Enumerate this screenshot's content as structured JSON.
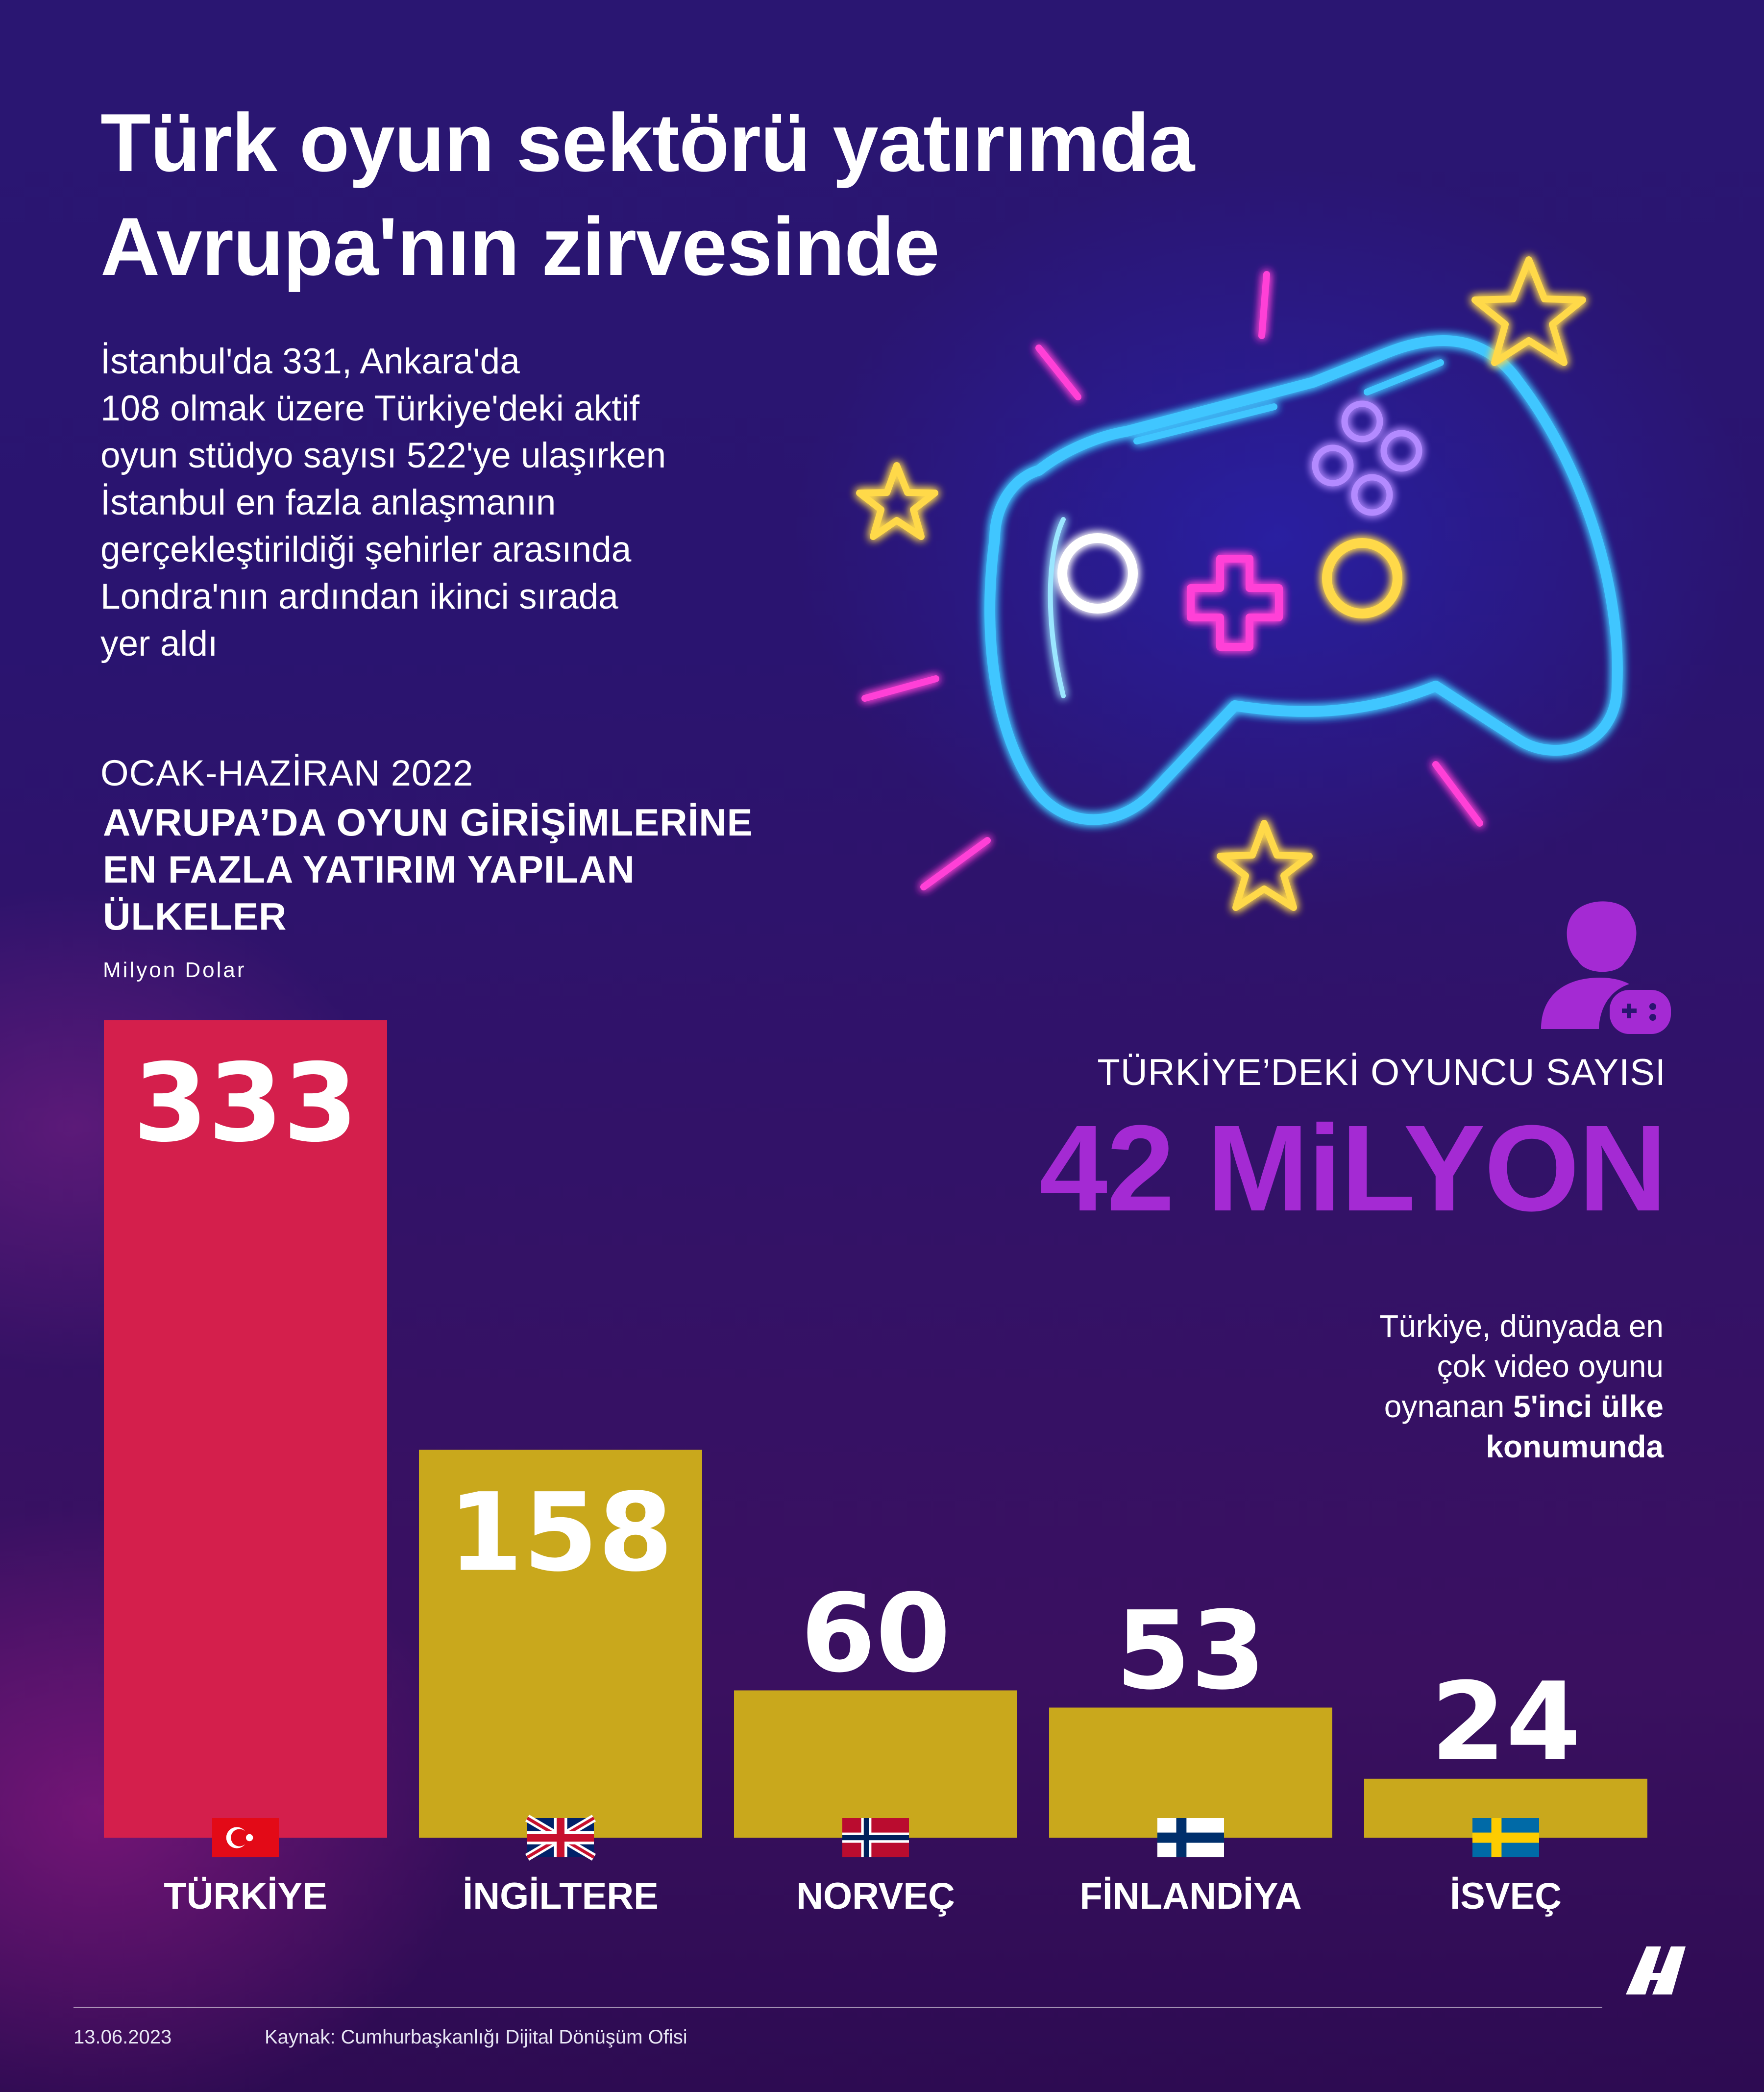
{
  "header": {
    "title_line1": "Türk oyun sektörü yatırımda",
    "title_line2": "Avrupa'nın zirvesinde"
  },
  "intro": {
    "lines": [
      "İstanbul'da 331, Ankara'da",
      "108 olmak üzere Türkiye'deki aktif",
      "oyun stüdyo sayısı 522'ye ulaşırken",
      "İstanbul en fazla anlaşmanın",
      "gerçekleştirildiği şehirler arasında",
      "Londra'nın ardından ikinci sırada",
      "yer aldı"
    ]
  },
  "chart_section": {
    "period": "OCAK-HAZİRAN 2022",
    "title_lines": [
      "AVRUPA’DA OYUN GİRİŞİMLERİNE",
      "EN FAZLA YATIRIM YAPILAN",
      "ÜLKELER"
    ],
    "unit": "Milyon Dolar"
  },
  "players": {
    "label": "TÜRKİYE’DEKİ OYUNCU SAYISI",
    "value": "42 MiLYON",
    "rank_lines": [
      "Türkiye, dünyada en",
      "çok video oyunu",
      "oynanan",
      "5'inci ülke",
      "konumunda"
    ]
  },
  "footer": {
    "date": "13.06.2023",
    "source": "Kaynak: Cumhurbaşkanlığı Dijital Dönüşüm Ofisi",
    "brand": "AA"
  },
  "colors": {
    "bar_highlight": "#d41f4c",
    "bar_default": "#c9a81c",
    "accent_purple": "#a42ad3",
    "neon_blue": "#3fc6ff",
    "neon_pink": "#ff3fd7",
    "neon_yellow": "#ffd94a"
  },
  "icons": [
    "gamepad-icon",
    "star-icon",
    "player-icon"
  ],
  "chart_data": {
    "type": "bar",
    "title": "AVRUPA’DA OYUN GİRİŞİMLERİNE EN FAZLA YATIRIM YAPILAN ÜLKELER",
    "subtitle": "OCAK-HAZİRAN 2022",
    "ylabel": "Milyon Dolar",
    "xlabel": "",
    "categories": [
      "TÜRKİYE",
      "İNGİLTERE",
      "NORVEÇ",
      "FİNLANDİYA",
      "İSVEÇ"
    ],
    "values": [
      333,
      158,
      60,
      53,
      24
    ],
    "flags": [
      "turkey-flag-icon",
      "uk-flag-icon",
      "norway-flag-icon",
      "finland-flag-icon",
      "sweden-flag-icon"
    ],
    "ylim": [
      0,
      333
    ],
    "grid": false,
    "legend": "none"
  }
}
